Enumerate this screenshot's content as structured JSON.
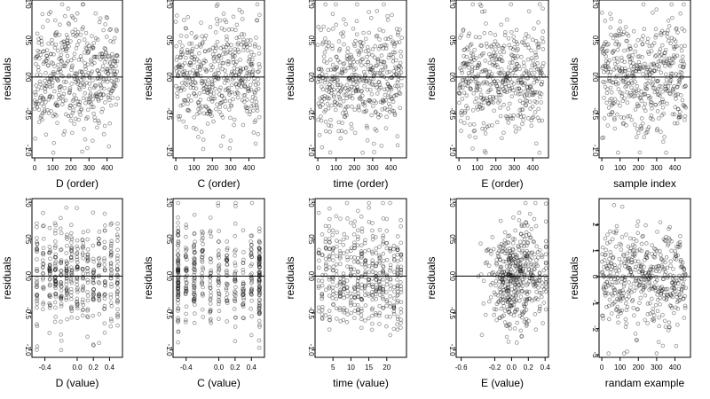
{
  "chart_data": [
    {
      "type": "scatter",
      "xlabel": "D (order)",
      "ylabel": "residuals",
      "xlim": [
        -15,
        485
      ],
      "ylim": [
        -1.1,
        1.05
      ],
      "xticks": [
        0,
        100,
        200,
        300,
        400
      ],
      "yticks": [
        -1.0,
        -0.5,
        0.0,
        0.5,
        1.0
      ],
      "xtick_labels": [
        "0",
        "100",
        "200",
        "300",
        "400"
      ],
      "ytick_labels": [
        "-1.0",
        "-0.5",
        "0.0",
        "0.5",
        "1.0"
      ],
      "hline": 0,
      "gen": {
        "kind": "index",
        "n": 460,
        "seed": 11,
        "ysd": 0.38,
        "ymin": -1.03,
        "ymax": 0.99
      }
    },
    {
      "type": "scatter",
      "xlabel": "C (order)",
      "ylabel": "residuals",
      "xlim": [
        -15,
        485
      ],
      "ylim": [
        -1.1,
        1.05
      ],
      "xticks": [
        0,
        100,
        200,
        300,
        400
      ],
      "yticks": [
        -1.0,
        -0.5,
        0.0,
        0.5,
        1.0
      ],
      "xtick_labels": [
        "0",
        "100",
        "200",
        "300",
        "400"
      ],
      "ytick_labels": [
        "-1.0",
        "-0.5",
        "0.0",
        "0.5",
        "1.0"
      ],
      "hline": 0,
      "gen": {
        "kind": "index",
        "n": 460,
        "seed": 23,
        "ysd": 0.38,
        "ymin": -1.03,
        "ymax": 0.99
      }
    },
    {
      "type": "scatter",
      "xlabel": "time (order)",
      "ylabel": "residuals",
      "xlim": [
        -15,
        485
      ],
      "ylim": [
        -1.1,
        1.05
      ],
      "xticks": [
        0,
        100,
        200,
        300,
        400
      ],
      "yticks": [
        -1.0,
        -0.5,
        0.0,
        0.5,
        1.0
      ],
      "xtick_labels": [
        "0",
        "100",
        "200",
        "300",
        "400"
      ],
      "ytick_labels": [
        "-1.0",
        "-0.5",
        "0.0",
        "0.5",
        "1.0"
      ],
      "hline": 0,
      "gen": {
        "kind": "index",
        "n": 460,
        "seed": 37,
        "ysd": 0.38,
        "ymin": -1.03,
        "ymax": 0.99
      }
    },
    {
      "type": "scatter",
      "xlabel": "E (order)",
      "ylabel": "residuals",
      "xlim": [
        -15,
        485
      ],
      "ylim": [
        -1.1,
        1.05
      ],
      "xticks": [
        0,
        100,
        200,
        300,
        400
      ],
      "yticks": [
        -1.0,
        -0.5,
        0.0,
        0.5,
        1.0
      ],
      "xtick_labels": [
        "0",
        "100",
        "200",
        "300",
        "400"
      ],
      "ytick_labels": [
        "-1.0",
        "-0.5",
        "0.0",
        "0.5",
        "1.0"
      ],
      "hline": 0,
      "gen": {
        "kind": "index",
        "n": 460,
        "seed": 41,
        "ysd": 0.38,
        "ymin": -1.03,
        "ymax": 0.99
      }
    },
    {
      "type": "scatter",
      "xlabel": "sample index",
      "ylabel": "residuals",
      "xlim": [
        -15,
        485
      ],
      "ylim": [
        -1.1,
        1.05
      ],
      "xticks": [
        0,
        100,
        200,
        300,
        400
      ],
      "yticks": [
        -1.0,
        -0.5,
        0.0,
        0.5,
        1.0
      ],
      "xtick_labels": [
        "0",
        "100",
        "200",
        "300",
        "400"
      ],
      "ytick_labels": [
        "-1.0",
        "-0.5",
        "0.0",
        "0.5",
        "1.0"
      ],
      "hline": 0,
      "gen": {
        "kind": "index",
        "n": 460,
        "seed": 53,
        "ysd": 0.38,
        "ymin": -1.03,
        "ymax": 0.99
      }
    },
    {
      "type": "scatter",
      "xlabel": "D (value)",
      "ylabel": "residuals",
      "xlim": [
        -0.56,
        0.56
      ],
      "ylim": [
        -1.1,
        1.05
      ],
      "xticks": [
        -0.4,
        0.0,
        0.2,
        0.4
      ],
      "yticks": [
        -1.0,
        -0.5,
        0.0,
        0.5,
        1.0
      ],
      "xtick_labels": [
        "-0.4",
        "0.0",
        "0.2",
        "0.4"
      ],
      "ytick_labels": [
        "-1.0",
        "-0.5",
        "0.0",
        "0.5",
        "1.0"
      ],
      "hline": 0,
      "gen": {
        "kind": "stripes",
        "n": 460,
        "seed": 61,
        "ysd": 0.38,
        "ymin": -1.03,
        "ymax": 0.99,
        "xmin": -0.5,
        "xmax": 0.5,
        "levels": [
          -0.5,
          -0.42,
          -0.34,
          -0.27,
          -0.2,
          -0.13,
          -0.07,
          0.0,
          0.07,
          0.13,
          0.2,
          0.27,
          0.34,
          0.42,
          0.5
        ],
        "jitter": 0.006
      }
    },
    {
      "type": "scatter",
      "xlabel": "C (value)",
      "ylabel": "residuals",
      "xlim": [
        -0.56,
        0.56
      ],
      "ylim": [
        -1.1,
        1.05
      ],
      "xticks": [
        -0.4,
        0.0,
        0.2,
        0.4
      ],
      "yticks": [
        -1.0,
        -0.5,
        0.0,
        0.5,
        1.0
      ],
      "xtick_labels": [
        "-0.4",
        "0.0",
        "0.2",
        "0.4"
      ],
      "ytick_labels": [
        "-1.0",
        "-0.5",
        "0.0",
        "0.5",
        "1.0"
      ],
      "hline": 0,
      "gen": {
        "kind": "stripes",
        "n": 460,
        "seed": 71,
        "ysd": 0.36,
        "ymin": -0.97,
        "ymax": 0.99,
        "xmin": -0.5,
        "xmax": 0.5,
        "levels": [
          -0.5,
          -0.5,
          -0.5,
          -0.4,
          -0.3,
          -0.2,
          -0.1,
          0.0,
          0.1,
          0.2,
          0.3,
          0.4,
          0.5,
          0.5,
          0.5
        ],
        "jitter": 0.008
      }
    },
    {
      "type": "scatter",
      "xlabel": "time (value)",
      "ylabel": "residuals",
      "xlim": [
        0,
        25.5
      ],
      "ylim": [
        -1.1,
        1.05
      ],
      "xticks": [
        5,
        10,
        15,
        20
      ],
      "yticks": [
        -1.0,
        -0.5,
        0.0,
        0.5,
        1.0
      ],
      "xtick_labels": [
        "5",
        "10",
        "15",
        "20"
      ],
      "ytick_labels": [
        "-1.0",
        "-0.5",
        "0.0",
        "0.5",
        "1.0"
      ],
      "hline": 0,
      "gen": {
        "kind": "stripes",
        "n": 460,
        "seed": 83,
        "ysd": 0.38,
        "ymin": -1.0,
        "ymax": 0.99,
        "xmin": 1,
        "xmax": 24,
        "levels": [
          1,
          2,
          3,
          4,
          5,
          6,
          7,
          8,
          9,
          10,
          11,
          12,
          13,
          14,
          15,
          16,
          17,
          18,
          19,
          20,
          21,
          22,
          23,
          24
        ],
        "jitter": 0.12
      }
    },
    {
      "type": "scatter",
      "xlabel": "E (value)",
      "ylabel": "residuals",
      "xlim": [
        -0.66,
        0.44
      ],
      "ylim": [
        -1.1,
        1.05
      ],
      "xticks": [
        -0.6,
        -0.2,
        0.0,
        0.2,
        0.4
      ],
      "yticks": [
        -1.0,
        -0.5,
        0.0,
        0.5,
        1.0
      ],
      "xtick_labels": [
        "-0.6",
        "-0.2",
        "0.0",
        "0.2",
        "0.4"
      ],
      "ytick_labels": [
        "-1.0",
        "-0.5",
        "0.0",
        "0.5",
        "1.0"
      ],
      "hline": 0,
      "gen": {
        "kind": "cloud",
        "n": 460,
        "seed": 97,
        "ysd": 0.35,
        "ymin": -1.03,
        "ymax": 0.99,
        "xmean": 0.05,
        "xsd": 0.18,
        "xmin": -0.63,
        "xmax": 0.41
      }
    },
    {
      "type": "scatter",
      "xlabel": "randam example",
      "ylabel": "residuals",
      "xlim": [
        -15,
        485
      ],
      "ylim": [
        -3.1,
        3.0
      ],
      "xticks": [
        0,
        100,
        200,
        300,
        400
      ],
      "yticks": [
        -3,
        -2,
        -1,
        0,
        1,
        2
      ],
      "xtick_labels": [
        "0",
        "100",
        "200",
        "300",
        "400"
      ],
      "ytick_labels": [
        "-3",
        "-2",
        "-1",
        "0",
        "1",
        "2"
      ],
      "hline": 0,
      "gen": {
        "kind": "index",
        "n": 460,
        "seed": 109,
        "ysd": 1.0,
        "ymin": -2.95,
        "ymax": 2.75
      }
    }
  ]
}
